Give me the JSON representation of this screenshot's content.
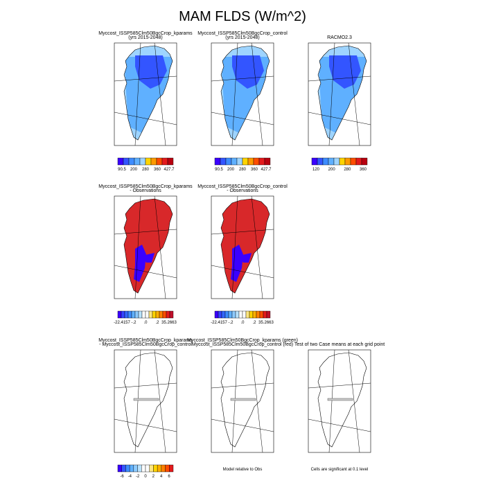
{
  "title": "MAM FLDS (W/m^2)",
  "panels": [
    {
      "title_lines": [
        "Myccost_ISSP585Clm50BgcCrop_kparams",
        "(yrs 2015-2048)"
      ],
      "colorbar": {
        "labels": [
          "90.5",
          "200",
          "280",
          "360",
          "427.7"
        ],
        "colors": [
          "#3a00ff",
          "#3355ff",
          "#3d8cff",
          "#5fb0ff",
          "#9ed4ff",
          "#ffd400",
          "#ff9a00",
          "#ff4d00",
          "#e31a1c",
          "#b8000f"
        ]
      }
    },
    {
      "title_lines": [
        "Myccost_ISSP585Clm50BgcCrop_control",
        "(yrs 2015-2048)"
      ],
      "colorbar": {
        "labels": [
          "90.5",
          "200",
          "280",
          "360",
          "427.7"
        ],
        "colors": [
          "#3a00ff",
          "#3355ff",
          "#3d8cff",
          "#5fb0ff",
          "#9ed4ff",
          "#ffd400",
          "#ff9a00",
          "#ff4d00",
          "#e31a1c",
          "#b8000f"
        ]
      }
    },
    {
      "title_lines": [
        "RACMO2.3"
      ],
      "colorbar": {
        "labels": [
          "120",
          "200",
          "280",
          "360"
        ],
        "colors": [
          "#3a00ff",
          "#3355ff",
          "#3d8cff",
          "#5fb0ff",
          "#9ed4ff",
          "#ffd400",
          "#ff9a00",
          "#ff4d00",
          "#e31a1c",
          "#b8000f"
        ]
      }
    },
    {
      "title_lines": [
        "Myccost_ISSP585Clm50BgcCrop_kparams",
        "- Observations"
      ],
      "colorbar": {
        "labels": [
          "-22.4157",
          "-.2",
          ".0",
          ".2",
          "35.2663"
        ],
        "colors": [
          "#3a00ff",
          "#3344ff",
          "#3366ff",
          "#3d8cff",
          "#5fb0ff",
          "#8ecbff",
          "#b8e2ff",
          "#ffffff",
          "#ffffff",
          "#ffe680",
          "#ffd400",
          "#ffb000",
          "#ff8000",
          "#ff4d00",
          "#e31a1c",
          "#c0102a"
        ]
      }
    },
    {
      "title_lines": [
        "Myccost_ISSP585Clm50BgcCrop_control",
        "- Observations"
      ],
      "colorbar": {
        "labels": [
          "-22.4157",
          "-.2",
          ".0",
          ".2",
          "35.2663"
        ],
        "colors": [
          "#3a00ff",
          "#3344ff",
          "#3366ff",
          "#3d8cff",
          "#5fb0ff",
          "#8ecbff",
          "#b8e2ff",
          "#ffffff",
          "#ffffff",
          "#ffe680",
          "#ffd400",
          "#ffb000",
          "#ff8000",
          "#ff4d00",
          "#e31a1c",
          "#c0102a"
        ]
      }
    },
    {
      "title_lines": [],
      "colorbar": null
    },
    {
      "title_lines": [
        "Myccost_ISSP585Clm50BgcCrop_kparams",
        "- Myccost_ISSP585Clm50BgcCrop_control"
      ],
      "colorbar": {
        "labels": [
          "-6",
          "-4",
          "-2",
          "0",
          "2",
          "4",
          "6"
        ],
        "colors": [
          "#3a00ff",
          "#3355ff",
          "#3d8cff",
          "#5fb0ff",
          "#8ecbff",
          "#b8e2ff",
          "#ffffff",
          "#ffffff",
          "#ffe680",
          "#ffd400",
          "#ffb000",
          "#ff8000",
          "#ff4d00",
          "#e31a1c"
        ]
      }
    },
    {
      "title_lines": [
        "Myccost_ISSP585Clm50BgcCrop_kparams (green)",
        "Myccost_ISSP585Clm50BgcCrop_control (red)"
      ],
      "colorbar": null,
      "note": "Model relative to Obs"
    },
    {
      "title_lines": [
        "Test of two Case means at each grid point"
      ],
      "colorbar": null,
      "note": "Cells are significant at 0.1 level"
    }
  ]
}
